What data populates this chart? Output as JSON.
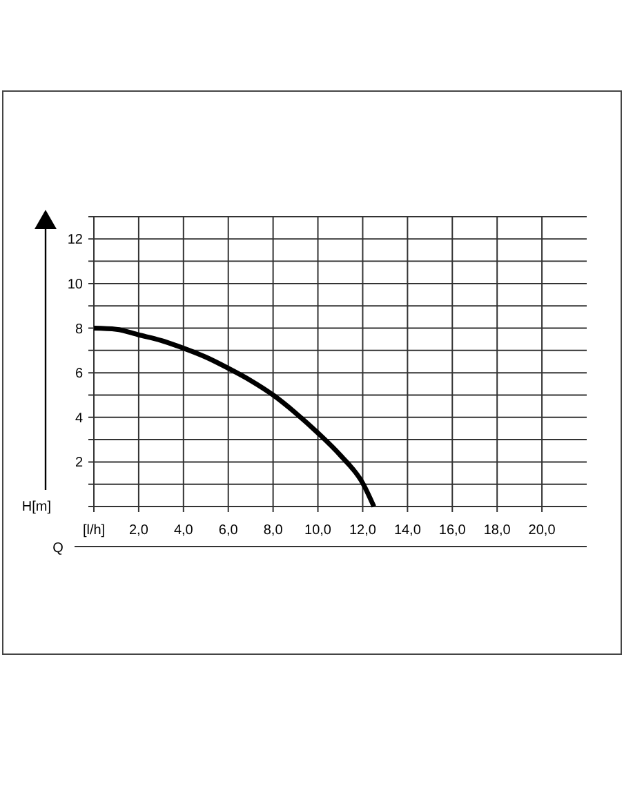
{
  "chart_data": {
    "type": "line",
    "xlabel": "Q",
    "ylabel": "H[m]",
    "x": [
      0,
      1,
      2,
      3,
      4,
      5,
      6,
      7,
      8,
      9,
      10,
      11,
      12,
      12.5
    ],
    "series": [
      {
        "color": "#000000",
        "values": [
          8,
          7.95,
          7.7,
          7.45,
          7.1,
          6.7,
          6.2,
          5.65,
          5.0,
          4.2,
          3.3,
          2.3,
          1.05,
          0
        ]
      }
    ],
    "xlim": [
      0,
      22
    ],
    "xticks": [
      {
        "value": 0,
        "label": "[l/h]"
      },
      {
        "value": 2,
        "label": "2,0"
      },
      {
        "value": 4,
        "label": "4,0"
      },
      {
        "value": 6,
        "label": "6,0"
      },
      {
        "value": 8,
        "label": "8,0"
      },
      {
        "value": 10,
        "label": "10,0"
      },
      {
        "value": 12,
        "label": "12,0"
      },
      {
        "value": 14,
        "label": "14,0"
      },
      {
        "value": 16,
        "label": "16,0"
      },
      {
        "value": 18,
        "label": "18,0"
      },
      {
        "value": 20,
        "label": "20,0"
      }
    ],
    "ylim": [
      0,
      13
    ],
    "yticks": [
      {
        "value": 0,
        "label": null
      },
      {
        "value": 1,
        "label": null
      },
      2,
      {
        "value": 3,
        "label": null
      },
      4,
      {
        "value": 5,
        "label": null
      },
      6,
      {
        "value": 7,
        "label": null
      },
      8,
      {
        "value": 9,
        "label": null
      },
      10,
      {
        "value": 11,
        "label": null
      },
      12,
      {
        "value": 13,
        "label": null
      }
    ],
    "grid": true,
    "marker": "none",
    "line_style": "solid"
  }
}
